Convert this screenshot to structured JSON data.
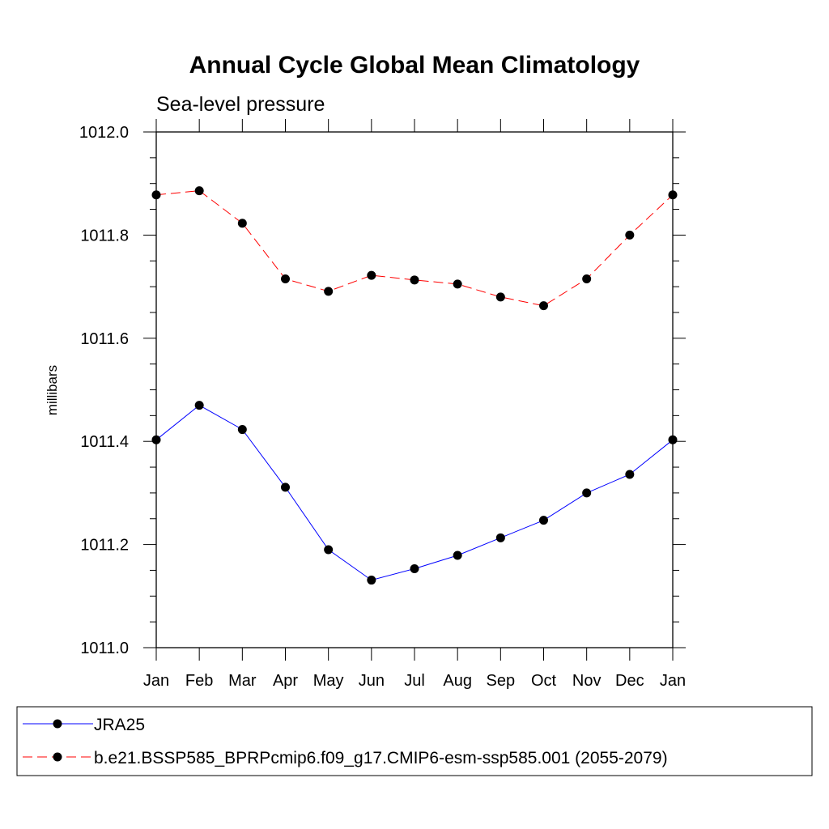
{
  "chart_data": {
    "type": "line",
    "title": "Annual Cycle Global Mean Climatology",
    "subtitle": "Sea-level pressure",
    "ylabel": "millibars",
    "xlabel": "",
    "categories": [
      "Jan",
      "Feb",
      "Mar",
      "Apr",
      "May",
      "Jun",
      "Jul",
      "Aug",
      "Sep",
      "Oct",
      "Nov",
      "Dec",
      "Jan"
    ],
    "ylim": [
      1011.0,
      1012.0
    ],
    "yticks": [
      "1011.0",
      "1011.2",
      "1011.4",
      "1011.6",
      "1011.8",
      "1012.0"
    ],
    "ytick_values": [
      1011.0,
      1011.2,
      1011.4,
      1011.6,
      1011.8,
      1012.0
    ],
    "y_minor_step": 0.05,
    "grid": false,
    "legend_position": "bottom",
    "series": [
      {
        "name": "JRA25",
        "color": "#0000ff",
        "dash": "solid",
        "marker": "filled-circle",
        "values": [
          1011.403,
          1011.47,
          1011.423,
          1011.311,
          1011.19,
          1011.131,
          1011.153,
          1011.179,
          1011.213,
          1011.247,
          1011.3,
          1011.336,
          1011.403
        ]
      },
      {
        "name": "b.e21.BSSP585_BPRPcmip6.f09_g17.CMIP6-esm-ssp585.001 (2055-2079)",
        "color": "#ff0000",
        "dash": "dashed",
        "marker": "filled-circle",
        "values": [
          1011.878,
          1011.886,
          1011.823,
          1011.715,
          1011.691,
          1011.722,
          1011.713,
          1011.705,
          1011.68,
          1011.663,
          1011.715,
          1011.8,
          1011.878
        ]
      }
    ]
  }
}
